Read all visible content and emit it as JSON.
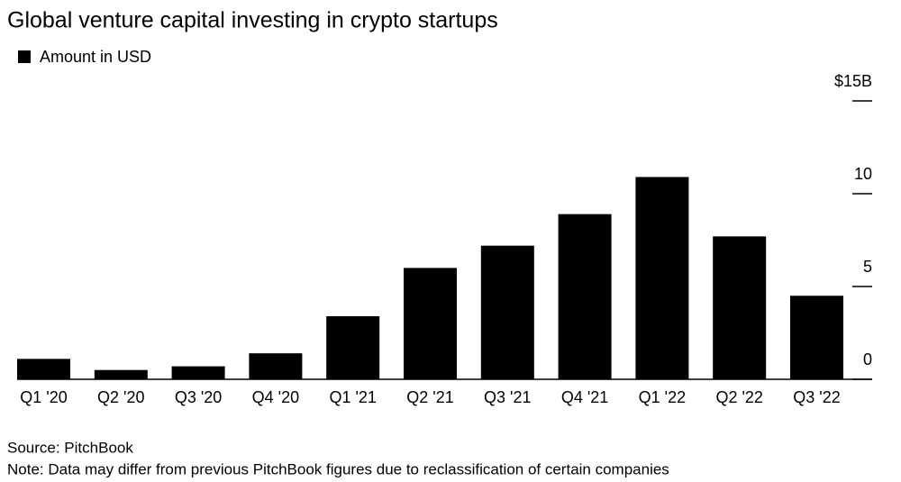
{
  "chart_data": {
    "type": "bar",
    "title": "Global venture capital investing in crypto startups",
    "categories": [
      "Q1 '20",
      "Q2 '20",
      "Q3 '20",
      "Q4 '20",
      "Q1 '21",
      "Q2 '21",
      "Q3 '21",
      "Q4 '21",
      "Q1 '22",
      "Q2 '22",
      "Q3 '22"
    ],
    "series": [
      {
        "name": "Amount in USD",
        "color": "#000000",
        "values": [
          1.1,
          0.5,
          0.7,
          1.4,
          3.4,
          6.0,
          7.2,
          8.9,
          10.9,
          7.7,
          4.5
        ]
      }
    ],
    "ylim": [
      0,
      15
    ],
    "yticks": [
      0,
      5,
      10,
      {
        "value": 15,
        "label": "$15B"
      }
    ],
    "source": "Source: PitchBook",
    "note": "Note: Data may differ from previous PitchBook figures due to reclassification of certain companies"
  }
}
